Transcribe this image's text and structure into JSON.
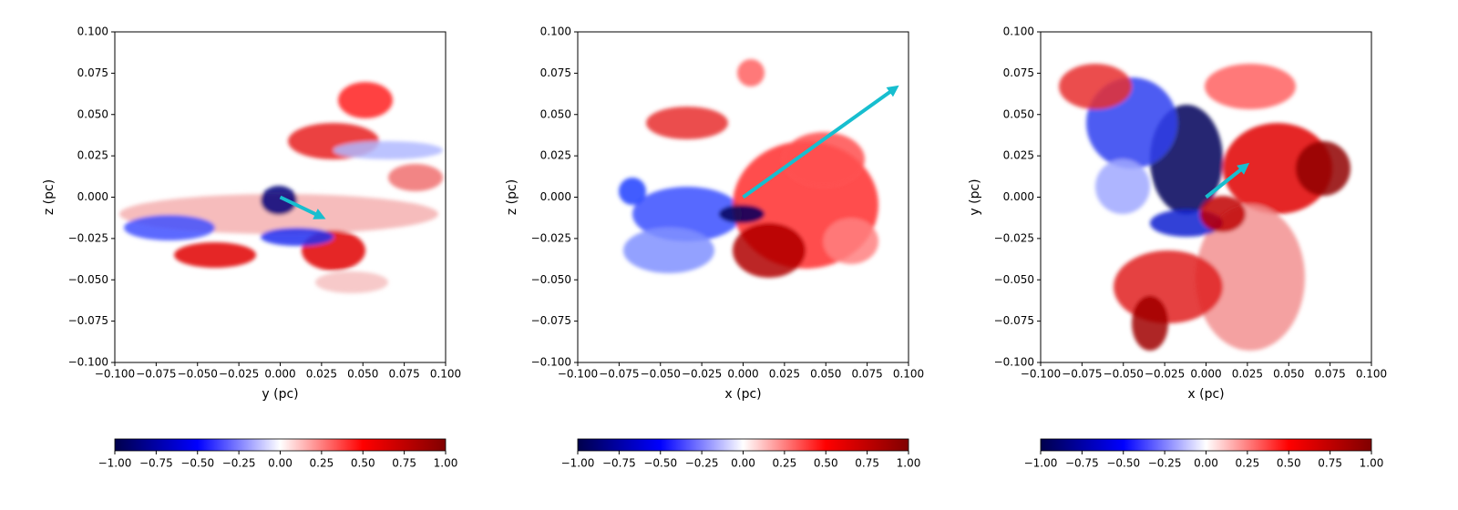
{
  "chart_data": [
    {
      "type": "image",
      "xlabel": "y (pc)",
      "ylabel": "z (pc)",
      "xlim": [
        -0.1,
        0.1
      ],
      "ylim": [
        -0.1,
        0.1
      ],
      "xticks": [
        {
          "value": -0.1,
          "label": "−0.100"
        },
        {
          "value": -0.075,
          "label": "−0.075"
        },
        {
          "value": -0.05,
          "label": "−0.050"
        },
        {
          "value": -0.025,
          "label": "−0.025"
        },
        {
          "value": 0,
          "label": "0.000"
        },
        {
          "value": 0.025,
          "label": "0.025"
        },
        {
          "value": 0.05,
          "label": "0.050"
        },
        {
          "value": 0.075,
          "label": "0.075"
        },
        {
          "value": 0.1,
          "label": "0.100"
        }
      ],
      "yticks": [
        {
          "value": -0.1,
          "label": "−0.100"
        },
        {
          "value": -0.075,
          "label": "−0.075"
        },
        {
          "value": -0.05,
          "label": "−0.050"
        },
        {
          "value": -0.025,
          "label": "−0.025"
        },
        {
          "value": 0,
          "label": "0.000"
        },
        {
          "value": 0.025,
          "label": "0.025"
        },
        {
          "value": 0.05,
          "label": "0.050"
        },
        {
          "value": 0.075,
          "label": "0.075"
        },
        {
          "value": 0.1,
          "label": "0.100"
        }
      ],
      "arrow": {
        "x": [
          0,
          0.025
        ],
        "y": [
          0,
          -0.012
        ],
        "color": "#17becf"
      },
      "colorbar": {
        "lim": [
          -1,
          1
        ],
        "ticks": [
          {
            "value": -1,
            "label": "−1.00"
          },
          {
            "value": -0.75,
            "label": "−0.75"
          },
          {
            "value": -0.5,
            "label": "−0.50"
          },
          {
            "value": -0.25,
            "label": "−0.25"
          },
          {
            "value": 0,
            "label": "0.00"
          },
          {
            "value": 0.25,
            "label": "0.25"
          },
          {
            "value": 0.5,
            "label": "0.50"
          },
          {
            "value": 0.75,
            "label": "0.75"
          },
          {
            "value": 1,
            "label": "1.00"
          }
        ]
      }
    },
    {
      "type": "image",
      "xlabel": "x (pc)",
      "ylabel": "z (pc)",
      "xlim": [
        -0.1,
        0.1
      ],
      "ylim": [
        -0.1,
        0.1
      ],
      "xticks": [
        {
          "value": -0.1,
          "label": "−0.100"
        },
        {
          "value": -0.075,
          "label": "−0.075"
        },
        {
          "value": -0.05,
          "label": "−0.050"
        },
        {
          "value": -0.025,
          "label": "−0.025"
        },
        {
          "value": 0,
          "label": "0.000"
        },
        {
          "value": 0.025,
          "label": "0.025"
        },
        {
          "value": 0.05,
          "label": "0.050"
        },
        {
          "value": 0.075,
          "label": "0.075"
        },
        {
          "value": 0.1,
          "label": "0.100"
        }
      ],
      "yticks": [
        {
          "value": -0.1,
          "label": "−0.100"
        },
        {
          "value": -0.075,
          "label": "−0.075"
        },
        {
          "value": -0.05,
          "label": "−0.050"
        },
        {
          "value": -0.025,
          "label": "−0.025"
        },
        {
          "value": 0,
          "label": "0.000"
        },
        {
          "value": 0.025,
          "label": "0.025"
        },
        {
          "value": 0.05,
          "label": "0.050"
        },
        {
          "value": 0.075,
          "label": "0.075"
        },
        {
          "value": 0.1,
          "label": "0.100"
        }
      ],
      "arrow": {
        "x": [
          0,
          0.092
        ],
        "y": [
          0,
          0.066
        ],
        "color": "#17becf"
      },
      "colorbar": {
        "lim": [
          -1,
          1
        ],
        "ticks": [
          {
            "value": -1,
            "label": "−1.00"
          },
          {
            "value": -0.75,
            "label": "−0.75"
          },
          {
            "value": -0.5,
            "label": "−0.50"
          },
          {
            "value": -0.25,
            "label": "−0.25"
          },
          {
            "value": 0,
            "label": "0.00"
          },
          {
            "value": 0.25,
            "label": "0.25"
          },
          {
            "value": 0.5,
            "label": "0.50"
          },
          {
            "value": 0.75,
            "label": "0.75"
          },
          {
            "value": 1,
            "label": "1.00"
          }
        ]
      }
    },
    {
      "type": "image",
      "xlabel": "x (pc)",
      "ylabel": "y (pc)",
      "xlim": [
        -0.1,
        0.1
      ],
      "ylim": [
        -0.1,
        0.1
      ],
      "xticks": [
        {
          "value": -0.1,
          "label": "−0.100"
        },
        {
          "value": -0.075,
          "label": "−0.075"
        },
        {
          "value": -0.05,
          "label": "−0.050"
        },
        {
          "value": -0.025,
          "label": "−0.025"
        },
        {
          "value": 0,
          "label": "0.000"
        },
        {
          "value": 0.025,
          "label": "0.025"
        },
        {
          "value": 0.05,
          "label": "0.050"
        },
        {
          "value": 0.075,
          "label": "0.075"
        },
        {
          "value": 0.1,
          "label": "0.100"
        }
      ],
      "yticks": [
        {
          "value": -0.1,
          "label": "−0.100"
        },
        {
          "value": -0.075,
          "label": "−0.075"
        },
        {
          "value": -0.05,
          "label": "−0.050"
        },
        {
          "value": -0.025,
          "label": "−0.025"
        },
        {
          "value": 0,
          "label": "0.000"
        },
        {
          "value": 0.025,
          "label": "0.025"
        },
        {
          "value": 0.05,
          "label": "0.050"
        },
        {
          "value": 0.075,
          "label": "0.075"
        },
        {
          "value": 0.1,
          "label": "0.100"
        }
      ],
      "arrow": {
        "x": [
          0,
          0.024
        ],
        "y": [
          0,
          0.019
        ],
        "color": "#17becf"
      },
      "colorbar": {
        "lim": [
          -1,
          1
        ],
        "ticks": [
          {
            "value": -1,
            "label": "−1.00"
          },
          {
            "value": -0.75,
            "label": "−0.75"
          },
          {
            "value": -0.5,
            "label": "−0.50"
          },
          {
            "value": -0.25,
            "label": "−0.25"
          },
          {
            "value": 0,
            "label": "0.00"
          },
          {
            "value": 0.25,
            "label": "0.25"
          },
          {
            "value": 0.5,
            "label": "0.50"
          },
          {
            "value": 0.75,
            "label": "0.75"
          },
          {
            "value": 1,
            "label": "1.00"
          }
        ]
      }
    }
  ]
}
